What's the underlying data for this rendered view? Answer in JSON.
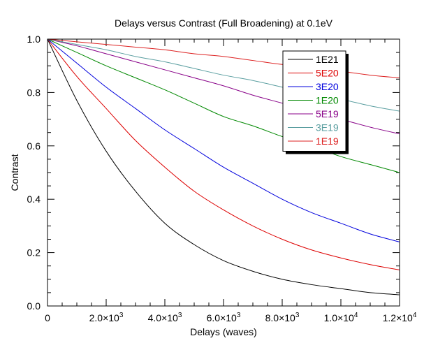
{
  "chart_data": {
    "type": "line",
    "title": "Delays versus Contrast (Full Broadening) at 0.1eV",
    "xlabel": "Delays (waves)",
    "ylabel": "Contrast",
    "xlim": [
      0,
      12000
    ],
    "ylim": [
      0,
      1.0
    ],
    "x_ticks": [
      0,
      2000,
      4000,
      6000,
      8000,
      10000,
      12000
    ],
    "x_tick_labels": [
      {
        "mant": "0",
        "exp": ""
      },
      {
        "mant": "2.0×10",
        "exp": "3"
      },
      {
        "mant": "4.0×10",
        "exp": "3"
      },
      {
        "mant": "6.0×10",
        "exp": "3"
      },
      {
        "mant": "8.0×10",
        "exp": "3"
      },
      {
        "mant": "1.0×10",
        "exp": "4"
      },
      {
        "mant": "1.2×10",
        "exp": "4"
      }
    ],
    "y_ticks": [
      0.0,
      0.2,
      0.4,
      0.6,
      0.8,
      1.0
    ],
    "y_tick_labels": [
      "0.0",
      "0.2",
      "0.4",
      "0.6",
      "0.8",
      "1.0"
    ],
    "legend_position": "top-right",
    "x": [
      0,
      1000,
      2000,
      3000,
      4000,
      5000,
      6000,
      7000,
      8000,
      9000,
      10000,
      11000,
      12000
    ],
    "series": [
      {
        "name": "1E21",
        "color": "#000000",
        "values": [
          1.0,
          0.77,
          0.58,
          0.43,
          0.31,
          0.23,
          0.17,
          0.13,
          0.1,
          0.08,
          0.065,
          0.05,
          0.042
        ]
      },
      {
        "name": "5E20",
        "color": "#dd0000",
        "values": [
          1.0,
          0.86,
          0.74,
          0.62,
          0.52,
          0.43,
          0.36,
          0.3,
          0.25,
          0.21,
          0.18,
          0.155,
          0.135
        ]
      },
      {
        "name": "3E20",
        "color": "#0000dd",
        "values": [
          1.0,
          0.91,
          0.82,
          0.74,
          0.66,
          0.59,
          0.52,
          0.46,
          0.4,
          0.35,
          0.31,
          0.27,
          0.24
        ]
      },
      {
        "name": "1E20",
        "color": "#008800",
        "values": [
          1.0,
          0.95,
          0.9,
          0.855,
          0.81,
          0.76,
          0.71,
          0.675,
          0.635,
          0.6,
          0.56,
          0.53,
          0.5
        ]
      },
      {
        "name": "5E19",
        "color": "#880088",
        "values": [
          1.0,
          0.975,
          0.945,
          0.915,
          0.885,
          0.855,
          0.825,
          0.79,
          0.76,
          0.73,
          0.7,
          0.67,
          0.645
        ]
      },
      {
        "name": "3E19",
        "color": "#5a9ea0",
        "values": [
          1.0,
          0.98,
          0.96,
          0.935,
          0.915,
          0.89,
          0.865,
          0.845,
          0.82,
          0.795,
          0.775,
          0.75,
          0.73
        ]
      },
      {
        "name": "1E19",
        "color": "#dd2222",
        "values": [
          1.0,
          0.99,
          0.98,
          0.97,
          0.96,
          0.945,
          0.935,
          0.92,
          0.905,
          0.895,
          0.88,
          0.865,
          0.855
        ]
      }
    ]
  }
}
